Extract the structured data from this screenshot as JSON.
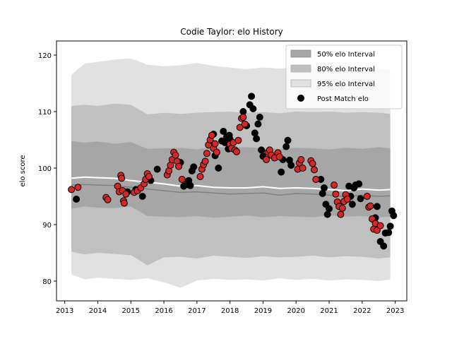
{
  "chart_data": {
    "type": "scatter",
    "title": "Codie Taylor: elo History",
    "xlabel": "",
    "ylabel": "elo score",
    "xlim": [
      2012.75,
      2023.35
    ],
    "ylim": [
      76.5,
      122.5
    ],
    "xticks": [
      2013,
      2014,
      2015,
      2016,
      2017,
      2018,
      2019,
      2020,
      2021,
      2022,
      2023
    ],
    "yticks": [
      80,
      90,
      100,
      110,
      120
    ],
    "grid": false,
    "legend_position": "upper right",
    "legend": [
      {
        "label": "50% elo Interval",
        "kind": "band50"
      },
      {
        "label": "80% elo Interval",
        "kind": "band80"
      },
      {
        "label": "95% elo Interval",
        "kind": "band95"
      },
      {
        "label": "Post Match elo",
        "kind": "marker"
      }
    ],
    "colors": {
      "band50": "#a6a6a6",
      "band80": "#c0c0c0",
      "band95": "#e1e1e1",
      "mean_line": "#ffffff",
      "median_line": "#808080",
      "win_marker": "#d62728",
      "loss_marker": "#000000"
    },
    "bands": {
      "x": [
        2013.2,
        2013.6,
        2014,
        2014.5,
        2015,
        2015.5,
        2016,
        2016.5,
        2017,
        2017.5,
        2018,
        2018.5,
        2019,
        2019.5,
        2020,
        2020.5,
        2021,
        2021.5,
        2022,
        2022.5,
        2022.85
      ],
      "p95_hi": [
        116.5,
        118.5,
        118.8,
        119.2,
        119.4,
        118.3,
        118.0,
        118.2,
        118.6,
        118.1,
        117.8,
        117.5,
        117.8,
        117.6,
        117.9,
        117.7,
        117.9,
        117.6,
        117.8,
        117.5,
        117.4
      ],
      "p80_hi": [
        111.0,
        111.2,
        111.0,
        111.4,
        111.2,
        109.5,
        109.8,
        109.6,
        109.8,
        109.9,
        110.0,
        109.8,
        109.9,
        109.7,
        110.0,
        109.9,
        110.0,
        109.8,
        109.9,
        109.8,
        109.6
      ],
      "p50_hi": [
        104.8,
        104.5,
        104.7,
        104.3,
        104.6,
        103.4,
        103.5,
        103.6,
        103.3,
        103.8,
        103.6,
        103.7,
        103.5,
        103.4,
        103.6,
        103.5,
        103.3,
        103.6,
        103.4,
        103.7,
        103.5
      ],
      "p50_lo": [
        92.8,
        93.2,
        93.0,
        92.9,
        93.2,
        91.5,
        91.4,
        91.3,
        91.5,
        91.2,
        91.4,
        91.6,
        91.3,
        91.5,
        91.4,
        91.3,
        91.6,
        91.4,
        91.5,
        91.3,
        91.4
      ],
      "p80_lo": [
        85.2,
        84.7,
        85.0,
        84.8,
        84.6,
        82.8,
        84.2,
        84.3,
        84.0,
        84.5,
        84.3,
        84.1,
        84.4,
        84.2,
        84.3,
        84.5,
        84.2,
        84.4,
        84.3,
        84.0,
        84.2
      ],
      "p95_lo": [
        81.2,
        80.3,
        80.6,
        80.4,
        80.2,
        80.5,
        79.8,
        78.8,
        80.1,
        80.4,
        80.2,
        80.3,
        80.1,
        80.5,
        80.2,
        80.4,
        80.1,
        80.3,
        80.2,
        80.0,
        80.3
      ],
      "mean": [
        98.2,
        98.4,
        98.3,
        98.2,
        97.8,
        97.5,
        97.2,
        96.8,
        96.9,
        96.6,
        96.5,
        96.5,
        96.7,
        96.4,
        96.5,
        96.4,
        96.2,
        96.0,
        96.3,
        96.1,
        96.2
      ],
      "median": [
        97.0,
        97.1,
        97.0,
        96.9,
        96.6,
        96.3,
        96.0,
        95.7,
        95.8,
        95.6,
        95.4,
        95.5,
        95.6,
        95.2,
        95.5,
        95.4,
        95.2,
        94.9,
        95.2,
        95.0,
        95.1
      ]
    },
    "wins": [
      [
        2013.2,
        96.2
      ],
      [
        2013.4,
        96.6
      ],
      [
        2014.25,
        94.8
      ],
      [
        2014.3,
        94.4
      ],
      [
        2014.6,
        96.8
      ],
      [
        2014.65,
        95.8
      ],
      [
        2014.7,
        98.7
      ],
      [
        2014.72,
        98.2
      ],
      [
        2014.75,
        96.0
      ],
      [
        2014.78,
        94.2
      ],
      [
        2014.8,
        93.8
      ],
      [
        2014.85,
        95.4
      ],
      [
        2015.1,
        95.7
      ],
      [
        2015.2,
        96.0
      ],
      [
        2015.3,
        96.5
      ],
      [
        2015.4,
        97.2
      ],
      [
        2015.45,
        98.0
      ],
      [
        2015.5,
        99.0
      ],
      [
        2015.55,
        98.5
      ],
      [
        2016.1,
        98.8
      ],
      [
        2016.15,
        99.5
      ],
      [
        2016.2,
        100.5
      ],
      [
        2016.25,
        101.5
      ],
      [
        2016.3,
        102.8
      ],
      [
        2016.35,
        102.3
      ],
      [
        2016.4,
        101.2
      ],
      [
        2016.45,
        100.3
      ],
      [
        2016.55,
        98.0
      ],
      [
        2017.1,
        98.5
      ],
      [
        2017.15,
        99.8
      ],
      [
        2017.2,
        100.6
      ],
      [
        2017.25,
        101.2
      ],
      [
        2017.3,
        102.6
      ],
      [
        2017.35,
        104.1
      ],
      [
        2017.4,
        105.0
      ],
      [
        2017.45,
        105.8
      ],
      [
        2017.5,
        103.5
      ],
      [
        2017.55,
        104.3
      ],
      [
        2017.6,
        102.8
      ],
      [
        2018.0,
        104.2
      ],
      [
        2018.05,
        103.5
      ],
      [
        2018.1,
        104.5
      ],
      [
        2018.15,
        103.2
      ],
      [
        2018.2,
        102.9
      ],
      [
        2018.25,
        104.9
      ],
      [
        2018.3,
        107.2
      ],
      [
        2018.35,
        108.8
      ],
      [
        2018.4,
        109.0
      ],
      [
        2018.45,
        107.8
      ],
      [
        2019.1,
        101.5
      ],
      [
        2019.15,
        102.8
      ],
      [
        2019.2,
        103.2
      ],
      [
        2019.25,
        102.3
      ],
      [
        2019.35,
        101.8
      ],
      [
        2019.45,
        102.7
      ],
      [
        2019.5,
        102.0
      ],
      [
        2020.05,
        99.8
      ],
      [
        2020.1,
        100.9
      ],
      [
        2020.15,
        101.5
      ],
      [
        2020.2,
        100.0
      ],
      [
        2020.45,
        101.3
      ],
      [
        2020.5,
        100.8
      ],
      [
        2020.55,
        99.7
      ],
      [
        2020.6,
        98.0
      ],
      [
        2021.15,
        97.0
      ],
      [
        2021.2,
        95.4
      ],
      [
        2021.25,
        94.0
      ],
      [
        2021.3,
        93.2
      ],
      [
        2021.35,
        91.8
      ],
      [
        2021.4,
        92.9
      ],
      [
        2021.45,
        94.1
      ],
      [
        2021.5,
        95.3
      ],
      [
        2021.55,
        94.5
      ],
      [
        2022.15,
        95.0
      ],
      [
        2022.2,
        93.1
      ],
      [
        2022.25,
        93.3
      ],
      [
        2022.3,
        91.0
      ],
      [
        2022.35,
        89.2
      ],
      [
        2022.4,
        90.2
      ],
      [
        2022.45,
        89.0
      ],
      [
        2022.55,
        89.8
      ]
    ],
    "losses": [
      [
        2013.35,
        94.5
      ],
      [
        2014.9,
        95.8
      ],
      [
        2015.15,
        96.2
      ],
      [
        2015.35,
        95.0
      ],
      [
        2015.6,
        97.8
      ],
      [
        2015.8,
        99.8
      ],
      [
        2016.5,
        101.0
      ],
      [
        2016.6,
        96.8
      ],
      [
        2016.7,
        97.1
      ],
      [
        2016.75,
        97.8
      ],
      [
        2016.8,
        96.9
      ],
      [
        2016.85,
        99.5
      ],
      [
        2016.9,
        100.2
      ],
      [
        2017.5,
        106.0
      ],
      [
        2017.55,
        102.2
      ],
      [
        2017.65,
        100.0
      ],
      [
        2017.75,
        104.8
      ],
      [
        2017.8,
        106.5
      ],
      [
        2017.85,
        104.5
      ],
      [
        2017.9,
        105.5
      ],
      [
        2017.95,
        103.4
      ],
      [
        2017.98,
        105.8
      ],
      [
        2018.0,
        105.1
      ],
      [
        2018.4,
        110.0
      ],
      [
        2018.5,
        107.5
      ],
      [
        2018.6,
        111.2
      ],
      [
        2018.65,
        112.7
      ],
      [
        2018.7,
        110.5
      ],
      [
        2018.75,
        106.2
      ],
      [
        2018.8,
        105.2
      ],
      [
        2018.85,
        107.8
      ],
      [
        2018.9,
        109.0
      ],
      [
        2018.95,
        103.2
      ],
      [
        2019.0,
        102.1
      ],
      [
        2019.55,
        99.3
      ],
      [
        2019.6,
        101.5
      ],
      [
        2019.7,
        103.8
      ],
      [
        2019.75,
        104.9
      ],
      [
        2019.8,
        101.4
      ],
      [
        2019.85,
        100.5
      ],
      [
        2020.75,
        98.0
      ],
      [
        2020.8,
        95.5
      ],
      [
        2020.85,
        96.5
      ],
      [
        2020.9,
        93.6
      ],
      [
        2020.95,
        91.8
      ],
      [
        2021.0,
        92.8
      ],
      [
        2021.6,
        96.8
      ],
      [
        2021.65,
        95.0
      ],
      [
        2021.7,
        93.6
      ],
      [
        2021.75,
        96.5
      ],
      [
        2021.8,
        97.0
      ],
      [
        2021.9,
        97.2
      ],
      [
        2021.95,
        94.6
      ],
      [
        2022.4,
        91.2
      ],
      [
        2022.45,
        93.2
      ],
      [
        2022.55,
        87.0
      ],
      [
        2022.65,
        86.2
      ],
      [
        2022.7,
        88.5
      ],
      [
        2022.8,
        88.6
      ],
      [
        2022.85,
        89.7
      ],
      [
        2022.9,
        92.4
      ],
      [
        2022.95,
        91.6
      ]
    ]
  }
}
